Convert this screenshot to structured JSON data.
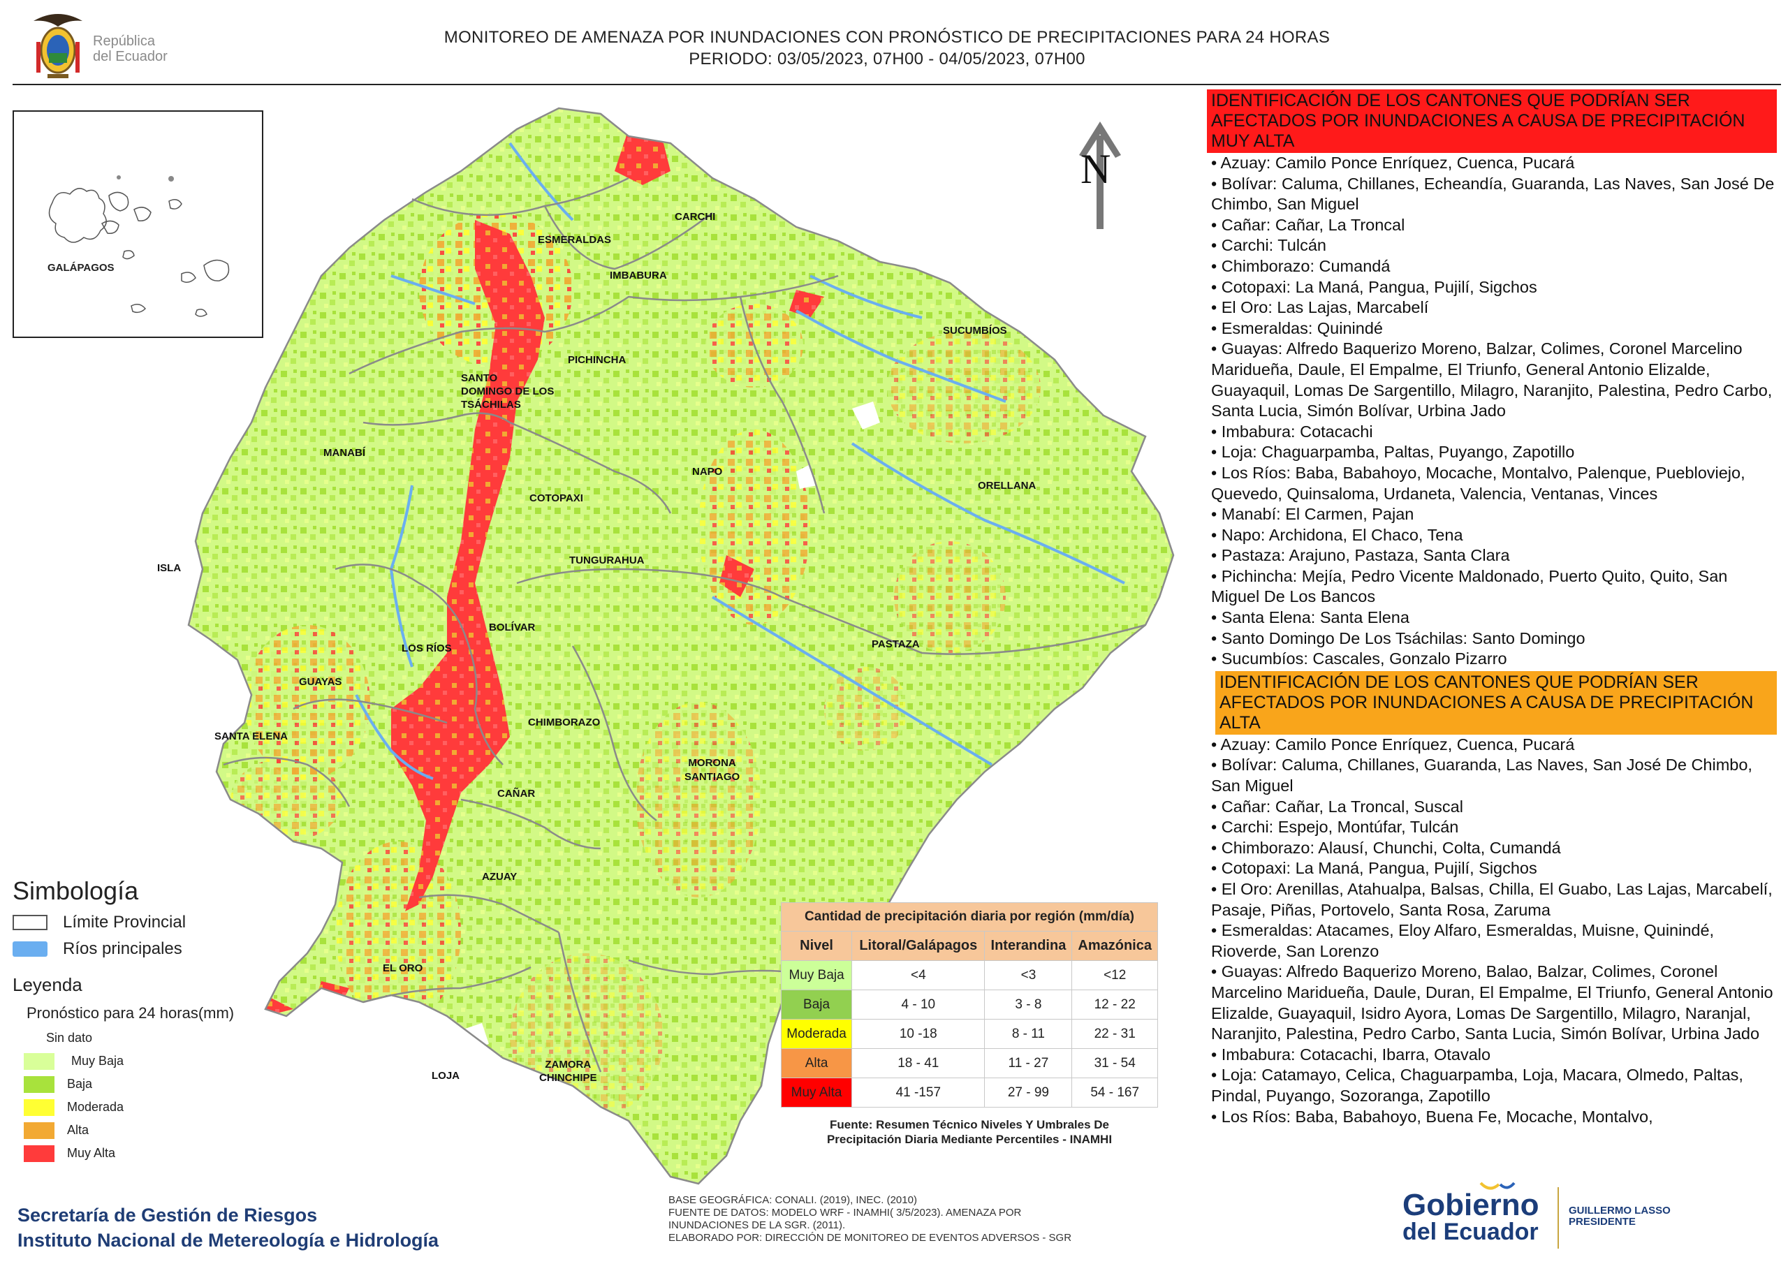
{
  "header": {
    "title_line1": "MONITOREO DE AMENAZA POR INUNDACIONES  CON PRONÓSTICO DE  PRECIPITACIONES PARA 24 HORAS",
    "title_line2": "PERIODO: 03/05/2023, 07H00 - 04/05/2023, 07H00",
    "logo_text_line1": "República",
    "logo_text_line2": "del Ecuador"
  },
  "inset": {
    "label": "GALÁPAGOS"
  },
  "north_label": "N",
  "map_labels": {
    "isla": "ISLA",
    "esmeraldas": "ESMERALDAS",
    "carchi": "CARCHI",
    "imbabura": "IMBABURA",
    "sucumbios": "SUCUMBÍOS",
    "pichincha": "PICHINCHA",
    "santo_domingo": [
      "SANTO",
      "DOMINGO DE LOS",
      "TSÁCHILAS"
    ],
    "manabi": "MANABÍ",
    "napo": "NAPO",
    "orellana": "ORELLANA",
    "cotopaxi": "COTOPAXI",
    "tungurahua": "TUNGURAHUA",
    "bolivar": "BOLÍVAR",
    "los_rios": "LOS RÍOS",
    "pastaza": "PASTAZA",
    "guayas": "GUAYAS",
    "santa_elena": "SANTA ELENA",
    "chimborazo": "CHIMBORAZO",
    "morona": [
      "MORONA",
      "SANTIAGO"
    ],
    "canar": "CAÑAR",
    "azuay": "AZUAY",
    "el_oro": "EL ORO",
    "loja": "LOJA",
    "zamora": [
      "ZAMORA",
      "CHINCHIPE"
    ]
  },
  "right_panel": {
    "very_high_header": "IDENTIFICACIÓN DE LOS CANTONES QUE PODRÍAN SER AFECTADOS POR INUNDACIONES  A CAUSA DE PRECIPITACIÓN MUY ALTA",
    "very_high_list": [
      "• Azuay: Camilo Ponce Enríquez, Cuenca, Pucará",
      "• Bolívar: Caluma, Chillanes, Echeandía, Guaranda, Las Naves, San José De Chimbo, San Miguel",
      "• Cañar: Cañar, La Troncal",
      "• Carchi: Tulcán",
      "• Chimborazo: Cumandá",
      "• Cotopaxi: La Maná, Pangua, Pujilí, Sigchos",
      "• El Oro: Las Lajas, Marcabelí",
      "• Esmeraldas: Quinindé",
      "• Guayas: Alfredo Baquerizo Moreno, Balzar, Colimes, Coronel Marcelino Maridueña, Daule, El Empalme, El Triunfo, General Antonio Elizalde, Guayaquil, Lomas De Sargentillo, Milagro, Naranjito, Palestina, Pedro Carbo, Santa Lucia, Simón Bolívar, Urbina Jado",
      "• Imbabura: Cotacachi",
      "• Loja: Chaguarpamba, Paltas, Puyango, Zapotillo",
      "• Los Ríos: Baba, Babahoyo, Mocache, Montalvo, Palenque, Puebloviejo, Quevedo, Quinsaloma, Urdaneta, Valencia, Ventanas, Vinces",
      "• Manabí: El Carmen, Pajan",
      "• Napo: Archidona, El Chaco, Tena",
      "• Pastaza: Arajuno, Pastaza, Santa Clara",
      "• Pichincha: Mejía, Pedro Vicente Maldonado, Puerto Quito, Quito, San Miguel De Los Bancos",
      "• Santa Elena: Santa Elena",
      "• Santo Domingo De Los Tsáchilas: Santo Domingo",
      "• Sucumbíos: Cascales, Gonzalo Pizarro"
    ],
    "high_header": "IDENTIFICACIÓN DE LOS CANTONES QUE  PODRÍAN SER AFECTADOS POR INUNDACIONES  A CAUSA DE PRECIPITACIÓN ALTA",
    "high_list": [
      "• Azuay: Camilo Ponce Enríquez, Cuenca, Pucará",
      "• Bolívar: Caluma, Chillanes, Guaranda, Las Naves, San José De Chimbo, San Miguel",
      "• Cañar: Cañar, La Troncal, Suscal",
      "• Carchi: Espejo, Montúfar, Tulcán",
      "• Chimborazo: Alausí, Chunchi, Colta, Cumandá",
      "• Cotopaxi: La Maná, Pangua, Pujilí, Sigchos",
      "• El Oro: Arenillas, Atahualpa, Balsas, Chilla, El Guabo, Las Lajas, Marcabelí, Pasaje, Piñas, Portovelo, Santa Rosa, Zaruma",
      "• Esmeraldas: Atacames, Eloy Alfaro, Esmeraldas, Muisne, Quinindé, Rioverde, San Lorenzo",
      "• Guayas: Alfredo Baquerizo Moreno, Balao, Balzar, Colimes, Coronel Marcelino Maridueña, Daule, Duran, El Empalme, El Triunfo, General Antonio Elizalde, Guayaquil, Isidro Ayora, Lomas De Sargentillo, Milagro, Naranjal, Naranjito, Palestina, Pedro Carbo, Santa Lucia, Simón Bolívar, Urbina Jado",
      "• Imbabura: Cotacachi, Ibarra, Otavalo",
      "• Loja: Catamayo, Celica, Chaguarpamba, Loja, Macara, Olmedo, Paltas, Pindal, Puyango, Sozoranga, Zapotillo",
      "• Los Ríos: Baba, Babahoyo, Buena Fe, Mocache, Montalvo,"
    ]
  },
  "legend": {
    "simbologia_title": "Simbología",
    "limite_label": "Límite Provincial",
    "rios_label": "Ríos principales",
    "leyenda_title": "Leyenda",
    "pronostico_label": "Pronóstico para 24 horas(mm)",
    "levels": [
      {
        "label": "Sin dato",
        "color": "#ffffff"
      },
      {
        "label": "Muy Baja",
        "color": "#d9ff99"
      },
      {
        "label": "Baja",
        "color": "#a8e23c"
      },
      {
        "label": "Moderada",
        "color": "#ffff33"
      },
      {
        "label": "Alta",
        "color": "#f2a933"
      },
      {
        "label": "Muy Alta",
        "color": "#ff3b3b"
      }
    ],
    "colors": {
      "limite": "#ffffff",
      "rios": "#6aaef0"
    }
  },
  "precip_table": {
    "title": "Cantidad de precipitación diaria por región (mm/día)",
    "headers": [
      "Nivel",
      "Litoral/Galápagos",
      "Interandina",
      "Amazónica"
    ],
    "rows": [
      {
        "nivel": "Muy Baja",
        "color": "#ccff99",
        "litoral": "<4",
        "interandina": "<3",
        "amazonica": "<12"
      },
      {
        "nivel": "Baja",
        "color": "#92d050",
        "litoral": "4 - 10",
        "interandina": "3 - 8",
        "amazonica": "12 - 22"
      },
      {
        "nivel": "Moderada",
        "color": "#ffff00",
        "litoral": "10 -18",
        "interandina": "8 - 11",
        "amazonica": "22 - 31"
      },
      {
        "nivel": "Alta",
        "color": "#f79646",
        "litoral": "18 - 41",
        "interandina": "11 - 27",
        "amazonica": "31 - 54"
      },
      {
        "nivel": "Muy Alta",
        "color": "#ff0000",
        "litoral": "41 -157",
        "interandina": "27 - 99",
        "amazonica": "54 - 167"
      }
    ],
    "source_line1": "Fuente: Resumen Técnico Niveles Y Umbrales De",
    "source_line2": "Precipitación Diaria Mediante Percentiles - INAMHI"
  },
  "footer": {
    "org_line1": "Secretaría de Gestión de Riesgos",
    "org_line2": "Instituto Nacional de Metereología e Hidrología",
    "meta_line1": "BASE GEOGRÁFICA: CONALI. (2019), INEC. (2010)",
    "meta_line2": "FUENTE DE DATOS: MODELO WRF - INAMHI( 3/5/2023).  AMENAZA POR",
    "meta_line3": "INUNDACIONES DE LA SGR. (2011).",
    "meta_line4": "ELABORADO POR: DIRECCIÓN DE MONITOREO DE EVENTOS ADVERSOS - SGR",
    "gob_line1": "Gobierno",
    "gob_line2": "del Ecuador",
    "president_line1": "GUILLERMO LASSO",
    "president_line2": "PRESIDENTE"
  }
}
